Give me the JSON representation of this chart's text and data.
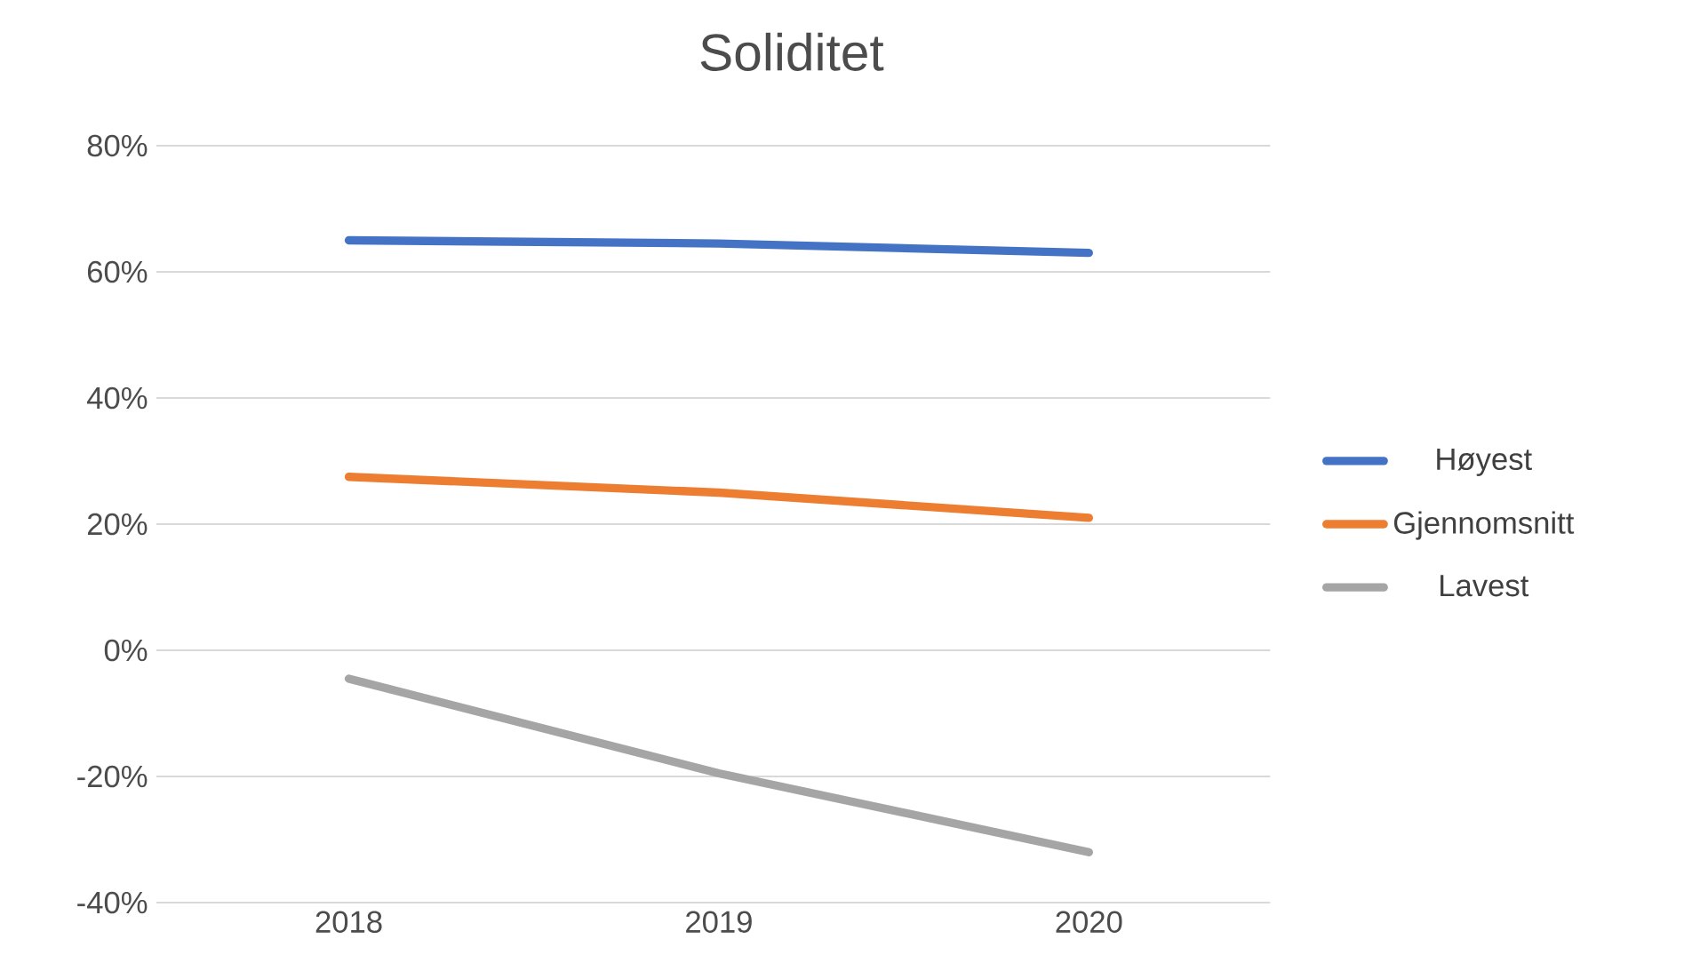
{
  "chart_data": {
    "type": "line",
    "title": "Soliditet",
    "categories": [
      "2018",
      "2019",
      "2020"
    ],
    "series": [
      {
        "name": "Høyest",
        "color": "#4472c4",
        "values": [
          65,
          64.5,
          63
        ]
      },
      {
        "name": "Gjennomsnitt",
        "color": "#ed7d31",
        "values": [
          27.5,
          25,
          21
        ]
      },
      {
        "name": "Lavest",
        "color": "#a5a5a5",
        "values": [
          -4.5,
          -19.5,
          -32
        ]
      }
    ],
    "ylim": [
      -40,
      80
    ],
    "yticks": [
      {
        "value": -40,
        "label": "-40%"
      },
      {
        "value": -20,
        "label": "-20%"
      },
      {
        "value": 0,
        "label": "0%"
      },
      {
        "value": 20,
        "label": "20%"
      },
      {
        "value": 40,
        "label": "40%"
      },
      {
        "value": 60,
        "label": "60%"
      },
      {
        "value": 80,
        "label": "80%"
      }
    ],
    "grid": "y",
    "legend": "right",
    "marker": "none",
    "line_style": "solid"
  }
}
